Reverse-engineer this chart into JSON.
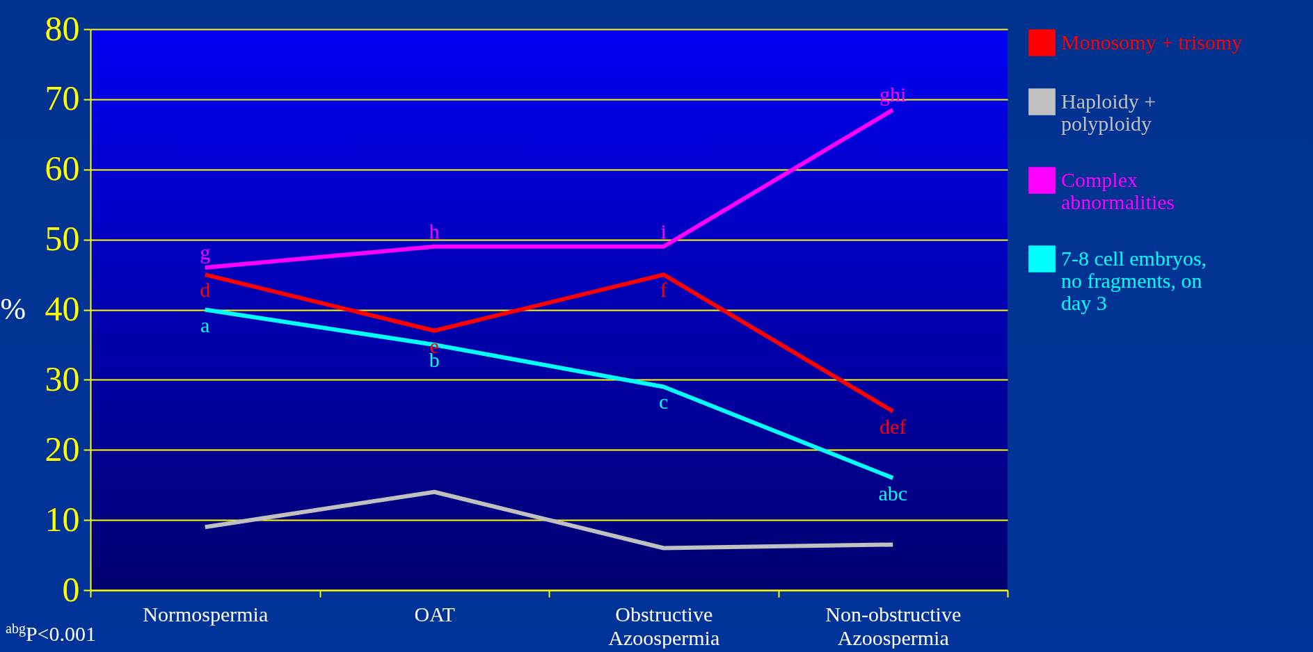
{
  "chart_data": {
    "type": "line",
    "ylabel": "%",
    "categories": [
      "Normospermia",
      "OAT",
      "Obstructive Azoospermia",
      "Non-obstructive Azoospermia"
    ],
    "series": [
      {
        "name": "Monosomy + trisomy",
        "color": "#ff0000",
        "values": [
          45,
          37,
          45,
          25.5
        ]
      },
      {
        "name": "Haploidy + polyploidy",
        "color": "#c0c0c0",
        "values": [
          9,
          14,
          6,
          6.5
        ]
      },
      {
        "name": "Complex abnormalities",
        "color": "#ff00ff",
        "values": [
          46,
          49,
          49,
          68.5
        ]
      },
      {
        "name": "7-8 cell embryos, no fragments, on day 3",
        "color": "#00ffff",
        "values": [
          40,
          35,
          29,
          16
        ]
      }
    ],
    "ylim": [
      0,
      80
    ],
    "yticks": [
      0,
      10,
      20,
      30,
      40,
      50,
      60,
      70,
      80
    ],
    "grid": "y",
    "legend": "right",
    "annotations": [
      {
        "text": "g",
        "x": "Normospermia",
        "y": 46
      },
      {
        "text": "d",
        "x": "Normospermia",
        "y": 45
      },
      {
        "text": "a",
        "x": "Normospermia",
        "y": 40
      },
      {
        "text": "h",
        "x": "OAT",
        "y": 49
      },
      {
        "text": "e",
        "x": "OAT",
        "y": 37
      },
      {
        "text": "b",
        "x": "OAT",
        "y": 35
      },
      {
        "text": "i",
        "x": "Obstructive Azoospermia",
        "y": 49
      },
      {
        "text": "f",
        "x": "Obstructive Azoospermia",
        "y": 45
      },
      {
        "text": "c",
        "x": "Obstructive Azoospermia",
        "y": 29
      },
      {
        "text": "ghi",
        "x": "Non-obstructive Azoospermia",
        "y": 68.5
      },
      {
        "text": "def",
        "x": "Non-obstructive Azoospermia",
        "y": 25.5
      },
      {
        "text": "abc",
        "x": "Non-obstructive Azoospermia",
        "y": 16
      },
      "$^{abg}$P<0.001"
    ]
  }
}
